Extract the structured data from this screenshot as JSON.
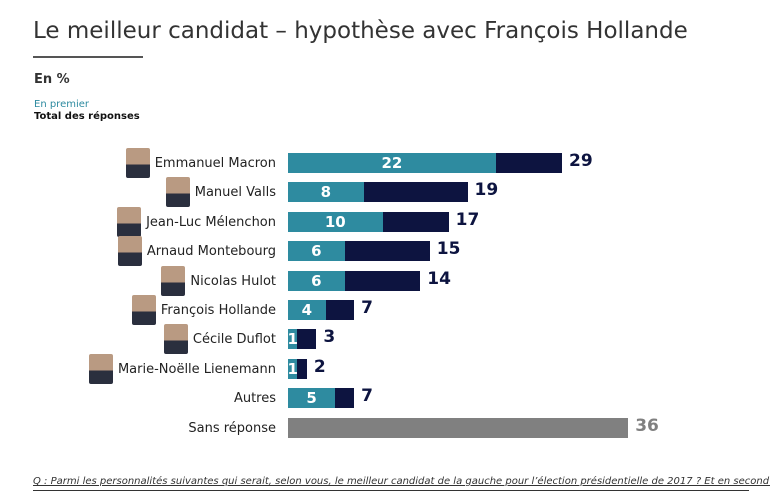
{
  "chart_data": {
    "type": "bar",
    "title": "Le meilleur candidat – hypothèse avec François Hollande",
    "unit_label": "En %",
    "legend": [
      "En premier",
      "Total des réponses"
    ],
    "colors": {
      "first": "#2e8ba0",
      "total": "#0d1440",
      "none": "#808080"
    },
    "categories": [
      "Emmanuel Macron",
      "Manuel Valls",
      "Jean-Luc Mélenchon",
      "Arnaud Montebourg",
      "Nicolas Hulot",
      "François Hollande",
      "Cécile Duflot",
      "Marie-Noëlle Lienemann",
      "Autres",
      "Sans réponse"
    ],
    "has_photo": [
      true,
      true,
      true,
      true,
      true,
      true,
      true,
      true,
      false,
      false
    ],
    "series": [
      {
        "name": "En premier",
        "values": [
          22,
          8,
          10,
          6,
          6,
          4,
          1,
          1,
          5,
          null
        ]
      },
      {
        "name": "Total des réponses",
        "values": [
          29,
          19,
          17,
          15,
          14,
          7,
          3,
          2,
          7,
          36
        ]
      }
    ],
    "xlim": [
      0,
      36
    ]
  },
  "footer": {
    "question": "Q : Parmi les personnalités suivantes qui serait, selon vous, le meilleur candidat de la gauche pour l’élection présidentielle de 2017 ? Et en second ?"
  }
}
